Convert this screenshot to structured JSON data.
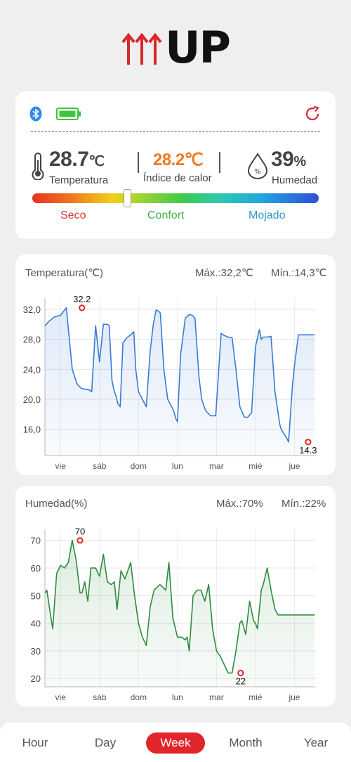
{
  "app": {
    "logo_text": "UP",
    "brand_color": "#d9262b"
  },
  "status": {
    "icons": {
      "bluetooth": "bluetooth-icon",
      "battery": "battery-icon",
      "refresh": "refresh-icon"
    },
    "temperature": {
      "value": "28.7",
      "unit": "℃",
      "label": "Temperatura"
    },
    "heat_index": {
      "value": "28.2℃",
      "label": "Índice de calor"
    },
    "humidity": {
      "value": "39",
      "unit": "%",
      "label": "Humedad"
    },
    "comfort_level": 0.33,
    "zones": {
      "dry": "Seco",
      "comfort": "Confort",
      "wet": "Mojado"
    },
    "zone_colors": {
      "dry": "#d63b34",
      "comfort": "#3fb24a",
      "wet": "#2b9bd0"
    }
  },
  "temp_chart": {
    "title": "Temperatura(℃)",
    "max_label": "Máx.:32,2℃",
    "min_label": "Mín.:14,3℃"
  },
  "hum_chart": {
    "title": "Humedad(%)",
    "max_label": "Máx.:70%",
    "min_label": "Mín.:22%"
  },
  "chart_data": [
    {
      "type": "area",
      "title": "Temperatura(℃)",
      "xlabel": "",
      "ylabel": "",
      "x_ticks": [
        "vie",
        "sáb",
        "dom",
        "lun",
        "mar",
        "mié",
        "jue"
      ],
      "y_ticks": [
        "32,0",
        "28,0",
        "24,0",
        "20,0",
        "16,0"
      ],
      "ylim": [
        12.5,
        33.5
      ],
      "grid": true,
      "color": "#3a7ad6",
      "max_annotation": {
        "x": 0.55,
        "y": 32.2,
        "label": "32.2"
      },
      "min_annotation": {
        "x": 6.35,
        "y": 14.3,
        "label": "14.3"
      },
      "series": [
        {
          "x": [
            -0.4,
            -0.3,
            -0.15,
            0.0,
            0.15,
            0.3,
            0.42,
            0.5,
            0.55,
            0.6,
            0.65,
            0.72,
            0.8,
            0.9,
            1.0,
            1.1,
            1.2,
            1.25,
            1.32,
            1.38,
            1.42,
            1.47,
            1.53,
            1.6,
            1.7,
            1.8,
            1.88,
            1.93,
            2.0,
            2.1,
            2.2,
            2.3,
            2.38,
            2.45,
            2.5,
            2.56,
            2.65,
            2.75,
            2.9,
            2.95,
            3.0,
            3.08,
            3.2,
            3.3,
            3.38,
            3.45,
            3.55,
            3.62,
            3.72,
            3.85,
            3.98,
            4.07,
            4.12,
            4.2,
            4.3,
            4.4,
            4.5,
            4.6,
            4.7,
            4.73,
            4.75,
            4.8,
            4.9,
            5.0,
            5.1,
            5.15,
            5.2,
            5.3,
            5.4,
            5.5,
            5.6,
            5.63,
            5.66,
            5.72,
            5.78,
            5.85,
            5.95,
            6.0,
            6.05,
            6.1,
            6.2,
            6.3,
            6.35,
            6.4,
            6.45,
            6.52
          ],
          "y": [
            29.8,
            30.4,
            31.0,
            31.2,
            32.2,
            24.0,
            22.1,
            21.6,
            21.4,
            21.4,
            21.3,
            21.3,
            21.0,
            29.8,
            25.0,
            30.0,
            30.0,
            29.8,
            22.5,
            21.0,
            20.5,
            19.4,
            19.0,
            27.5,
            28.2,
            28.6,
            29.0,
            24.0,
            21.0,
            20.0,
            19.0,
            26.5,
            30.0,
            31.9,
            31.8,
            31.5,
            24.0,
            20.0,
            18.5,
            17.5,
            17.0,
            26.0,
            30.8,
            31.3,
            31.2,
            30.8,
            23.0,
            20.0,
            18.5,
            17.8,
            17.8,
            25.0,
            28.8,
            28.5,
            28.3,
            28.2,
            24.0,
            19.0,
            17.8,
            17.6,
            17.6,
            17.6,
            18.2,
            27.0,
            29.3,
            28.0,
            28.3,
            28.3,
            28.4,
            21.0,
            17.5,
            16.5,
            16.0,
            15.5,
            15.0,
            14.3,
            22.0,
            24.5,
            26.5,
            28.6,
            28.6,
            28.6,
            28.6,
            28.6,
            28.6,
            28.6
          ]
        }
      ]
    },
    {
      "type": "area",
      "title": "Humedad(%)",
      "xlabel": "",
      "ylabel": "",
      "x_ticks": [
        "vie",
        "sáb",
        "dom",
        "lun",
        "mar",
        "mié",
        "jue"
      ],
      "y_ticks": [
        "70",
        "60",
        "50",
        "40",
        "30",
        "20"
      ],
      "ylim": [
        17,
        74
      ],
      "grid": true,
      "color": "#2e8b3e",
      "max_annotation": {
        "x": 0.5,
        "y": 70,
        "label": "70"
      },
      "min_annotation": {
        "x": 4.62,
        "y": 22,
        "label": "22"
      },
      "series": [
        {
          "x": [
            -0.4,
            -0.35,
            -0.3,
            -0.2,
            -0.1,
            0.0,
            0.1,
            0.2,
            0.3,
            0.4,
            0.5,
            0.55,
            0.62,
            0.7,
            0.78,
            0.9,
            1.0,
            1.1,
            1.2,
            1.3,
            1.38,
            1.45,
            1.55,
            1.65,
            1.8,
            1.9,
            2.0,
            2.1,
            2.2,
            2.3,
            2.4,
            2.55,
            2.7,
            2.78,
            2.88,
            3.0,
            3.1,
            3.2,
            3.25,
            3.3,
            3.4,
            3.5,
            3.6,
            3.7,
            3.8,
            3.9,
            4.0,
            4.1,
            4.2,
            4.3,
            4.4,
            4.5,
            4.55,
            4.6,
            4.65,
            4.75,
            4.85,
            4.95,
            5.0,
            5.05,
            5.1,
            5.15,
            5.2,
            5.3,
            5.4,
            5.5,
            5.58,
            5.7,
            5.8,
            5.9,
            6.0,
            6.15,
            6.25,
            6.35,
            6.45,
            6.52
          ],
          "y": [
            51,
            52,
            47,
            38,
            58,
            61,
            60,
            62,
            70,
            63,
            51,
            51,
            55,
            48,
            60,
            60,
            57,
            65,
            55,
            54,
            55,
            45,
            59,
            56,
            62,
            50,
            40,
            35,
            32,
            46,
            52,
            54,
            52,
            62,
            42,
            35,
            35,
            34,
            35,
            30,
            50,
            52,
            52,
            48,
            54,
            38,
            30,
            28,
            25,
            22,
            22,
            30,
            35,
            40,
            41,
            36,
            48,
            41,
            40,
            38,
            45,
            52,
            54,
            60,
            52,
            45,
            43,
            43,
            43,
            43,
            43,
            43,
            43,
            43,
            43,
            43
          ]
        }
      ]
    }
  ],
  "nav": {
    "items": [
      "Hour",
      "Day",
      "Week",
      "Month",
      "Year"
    ],
    "active": "Week",
    "active_color": "#e0262a"
  }
}
